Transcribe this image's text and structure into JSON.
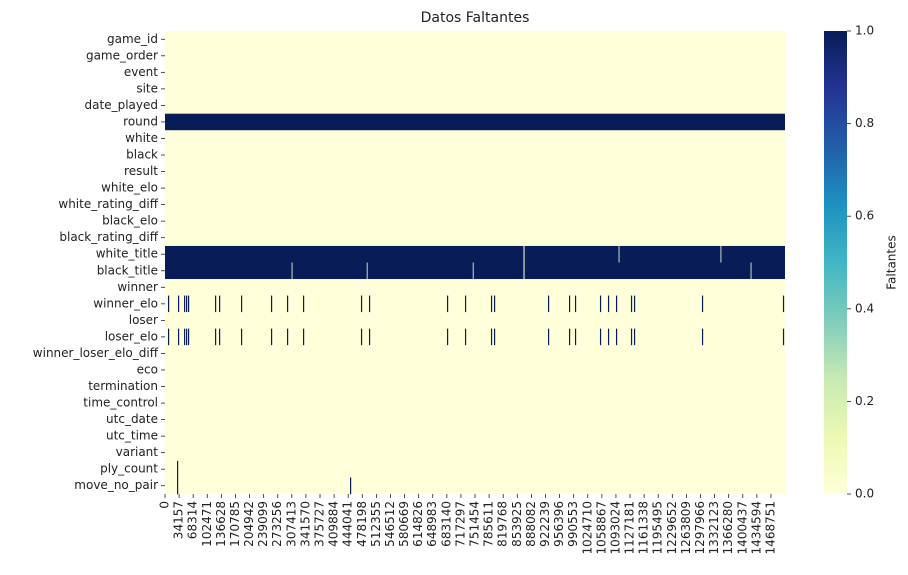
{
  "chart_data": {
    "type": "heatmap",
    "title": "Datos Faltantes",
    "colorbar_label": "Faltantes",
    "colors": [
      "#ffffd9",
      "#edf8b1",
      "#c7e9b4",
      "#7fcdbb",
      "#41b6c4",
      "#1d91c0",
      "#225ea8",
      "#253494",
      "#081d58"
    ],
    "clim": [
      0,
      1
    ],
    "cticks": [
      {
        "value": 0,
        "label": "0.0"
      },
      {
        "value": 0.2,
        "label": "0.2"
      },
      {
        "value": 0.4,
        "label": "0.4"
      },
      {
        "value": 0.6,
        "label": "0.6"
      },
      {
        "value": 0.8,
        "label": "0.8"
      },
      {
        "value": 1,
        "label": "1.0"
      }
    ],
    "present_value": 0,
    "missing_value": 1,
    "xlim": [
      0,
      1502800
    ],
    "xticks": [
      0,
      34157,
      68314,
      102471,
      136628,
      170785,
      204942,
      239099,
      273256,
      307413,
      341570,
      375727,
      409884,
      444041,
      478198,
      512355,
      546512,
      580669,
      614826,
      648983,
      683140,
      717297,
      751454,
      785611,
      819768,
      853925,
      888082,
      922239,
      956396,
      990553,
      1024710,
      1058867,
      1093024,
      1127181,
      1161338,
      1195495,
      1229652,
      1263809,
      1297966,
      1332123,
      1366280,
      1400437,
      1434594,
      1468751
    ],
    "rows": [
      {
        "name": "game_id",
        "missing": []
      },
      {
        "name": "game_order",
        "missing": []
      },
      {
        "name": "event",
        "missing": []
      },
      {
        "name": "site",
        "missing": []
      },
      {
        "name": "date_played",
        "missing": []
      },
      {
        "name": "round",
        "missing": [
          [
            0,
            1502800
          ]
        ]
      },
      {
        "name": "white",
        "missing": []
      },
      {
        "name": "black",
        "missing": []
      },
      {
        "name": "result",
        "missing": []
      },
      {
        "name": "white_elo",
        "missing": []
      },
      {
        "name": "white_rating_diff",
        "missing": []
      },
      {
        "name": "black_elo",
        "missing": []
      },
      {
        "name": "black_rating_diff",
        "missing": []
      },
      {
        "name": "white_title",
        "missing": [
          [
            0,
            869000
          ],
          [
            871500,
            1099500
          ],
          [
            1101500,
            1346500
          ],
          [
            1348500,
            1502800
          ]
        ]
      },
      {
        "name": "black_title",
        "missing": [
          [
            0,
            307000
          ],
          [
            309000,
            489000
          ],
          [
            491000,
            746000
          ],
          [
            748000,
            869000
          ],
          [
            871500,
            1419500
          ],
          [
            1421500,
            1502800
          ]
        ]
      },
      {
        "name": "winner",
        "missing": []
      },
      {
        "name": "winner_elo",
        "missing": [
          [
            7300,
            8300
          ],
          [
            31500,
            32500
          ],
          [
            46100,
            47100
          ],
          [
            50900,
            51900
          ],
          [
            55700,
            56700
          ],
          [
            121200,
            122200
          ],
          [
            130900,
            131900
          ],
          [
            184200,
            185200
          ],
          [
            256900,
            257900
          ],
          [
            295700,
            296700
          ],
          [
            334500,
            335500
          ],
          [
            475000,
            476000
          ],
          [
            494400,
            495400
          ],
          [
            683500,
            684500
          ],
          [
            727100,
            729100
          ],
          [
            790100,
            791100
          ],
          [
            797400,
            798400
          ],
          [
            928300,
            929300
          ],
          [
            979200,
            980200
          ],
          [
            993700,
            994700
          ],
          [
            1054300,
            1055300
          ],
          [
            1073700,
            1074700
          ],
          [
            1093100,
            1094100
          ],
          [
            1129400,
            1130400
          ],
          [
            1136700,
            1137700
          ],
          [
            1301500,
            1302500
          ],
          [
            1497800,
            1498800
          ]
        ]
      },
      {
        "name": "loser",
        "missing": []
      },
      {
        "name": "loser_elo",
        "missing": [
          [
            7300,
            8300
          ],
          [
            31500,
            32500
          ],
          [
            46100,
            47100
          ],
          [
            50900,
            51900
          ],
          [
            55700,
            56700
          ],
          [
            121200,
            122200
          ],
          [
            130900,
            131900
          ],
          [
            184200,
            185200
          ],
          [
            256900,
            257900
          ],
          [
            295700,
            296700
          ],
          [
            334500,
            335500
          ],
          [
            475000,
            476000
          ],
          [
            494400,
            495400
          ],
          [
            683500,
            684500
          ],
          [
            727100,
            729100
          ],
          [
            790100,
            791100
          ],
          [
            797400,
            798400
          ],
          [
            928300,
            929300
          ],
          [
            979200,
            980200
          ],
          [
            993700,
            994700
          ],
          [
            1054300,
            1055300
          ],
          [
            1073700,
            1074700
          ],
          [
            1093100,
            1094100
          ],
          [
            1129400,
            1130400
          ],
          [
            1136700,
            1137700
          ],
          [
            1301500,
            1302500
          ],
          [
            1497800,
            1498800
          ]
        ]
      },
      {
        "name": "winner_loser_elo_diff",
        "missing": []
      },
      {
        "name": "eco",
        "missing": []
      },
      {
        "name": "termination",
        "missing": []
      },
      {
        "name": "time_control",
        "missing": []
      },
      {
        "name": "utc_date",
        "missing": []
      },
      {
        "name": "utc_time",
        "missing": []
      },
      {
        "name": "variant",
        "missing": []
      },
      {
        "name": "ply_count",
        "missing": [
          [
            29100,
            30100
          ]
        ]
      },
      {
        "name": "move_no_pair",
        "missing": [
          [
            29100,
            30100
          ],
          [
            448400,
            449400
          ]
        ]
      }
    ]
  }
}
